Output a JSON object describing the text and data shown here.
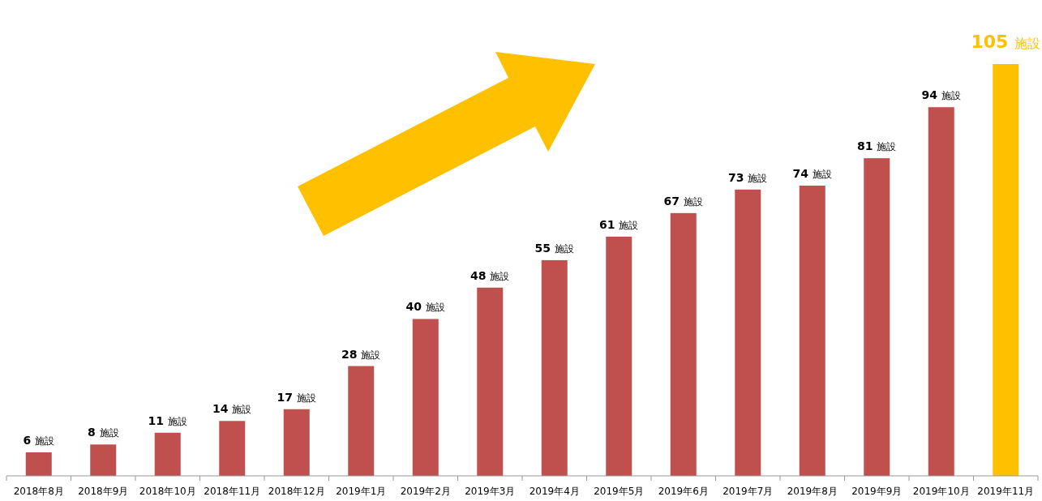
{
  "chart_data": {
    "type": "bar",
    "categories": [
      "2018年8月",
      "2018年9月",
      "2018年10月",
      "2018年11月",
      "2018年12月",
      "2019年1月",
      "2019年2月",
      "2019年3月",
      "2019年4月",
      "2019年5月",
      "2019年6月",
      "2019年7月",
      "2019年8月",
      "2019年9月",
      "2019年10月",
      "2019年11月"
    ],
    "values": [
      6,
      8,
      11,
      14,
      17,
      28,
      40,
      48,
      55,
      61,
      67,
      73,
      74,
      81,
      94,
      105
    ],
    "value_labels": [
      "6 施設",
      "8 施設",
      "11 施設",
      "14 施設",
      "17 施設",
      "28 施設",
      "40 施設",
      "48 施設",
      "55 施設",
      "61 施設",
      "67 施設",
      "73 施設",
      "74 施設",
      "81 施設",
      "94 施設",
      "105 施設"
    ],
    "colors": [
      "#c0504d",
      "#c0504d",
      "#c0504d",
      "#c0504d",
      "#c0504d",
      "#c0504d",
      "#c0504d",
      "#c0504d",
      "#c0504d",
      "#c0504d",
      "#c0504d",
      "#c0504d",
      "#c0504d",
      "#c0504d",
      "#c0504d",
      "#ffc000"
    ]
  }
}
